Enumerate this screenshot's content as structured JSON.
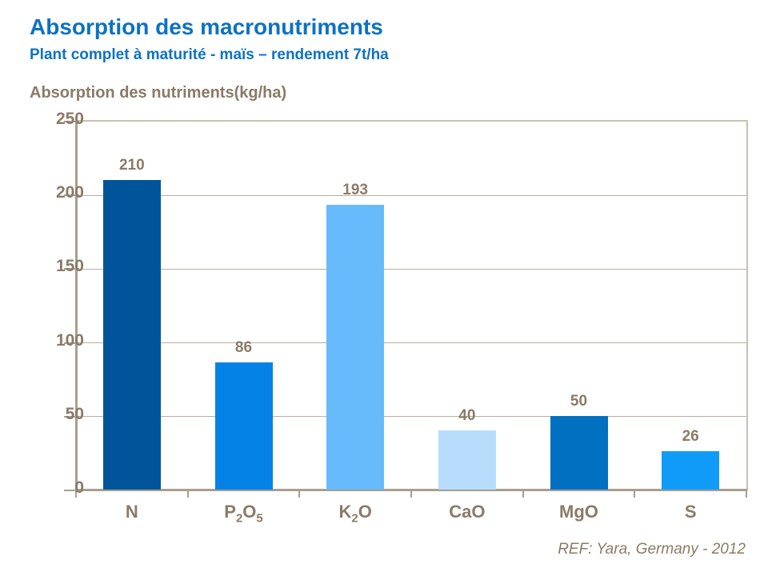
{
  "header": {
    "title": "Absorption des macronutriments",
    "subtitle": "Plant complet à maturité - maïs – rendement 7t/ha"
  },
  "footer": {
    "reference": "REF: Yara, Germany - 2012"
  },
  "colors": {
    "title_blue": "#0d72c2",
    "brown_text": "#8a7b67",
    "axis_line": "#a99e8e",
    "grid_line": "#b9af9f",
    "frame_line": "#c8c0b1",
    "background": "#ffffff"
  },
  "chart_data": {
    "type": "bar",
    "title": "Absorption des nutriments(kg/ha)",
    "categories": [
      "N",
      "P2O5",
      "K2O",
      "CaO",
      "MgO",
      "S"
    ],
    "category_label_segments": [
      [
        {
          "t": "N"
        }
      ],
      [
        {
          "t": "P"
        },
        {
          "t": "2",
          "sub": true
        },
        {
          "t": "O"
        },
        {
          "t": "5",
          "sub": true
        }
      ],
      [
        {
          "t": "K"
        },
        {
          "t": "2",
          "sub": true
        },
        {
          "t": "O"
        }
      ],
      [
        {
          "t": "CaO"
        }
      ],
      [
        {
          "t": "MgO"
        }
      ],
      [
        {
          "t": "S"
        }
      ]
    ],
    "values": [
      210,
      86,
      193,
      40,
      50,
      26
    ],
    "bar_colors": [
      "#00559a",
      "#0482e5",
      "#68bbfa",
      "#b8dcfc",
      "#0070c0",
      "#119bf9"
    ],
    "xlabel": "",
    "ylabel": "",
    "ylim": [
      0,
      250
    ],
    "yticks": [
      0,
      50,
      100,
      150,
      200,
      250
    ],
    "grid": true,
    "legend": "none"
  }
}
